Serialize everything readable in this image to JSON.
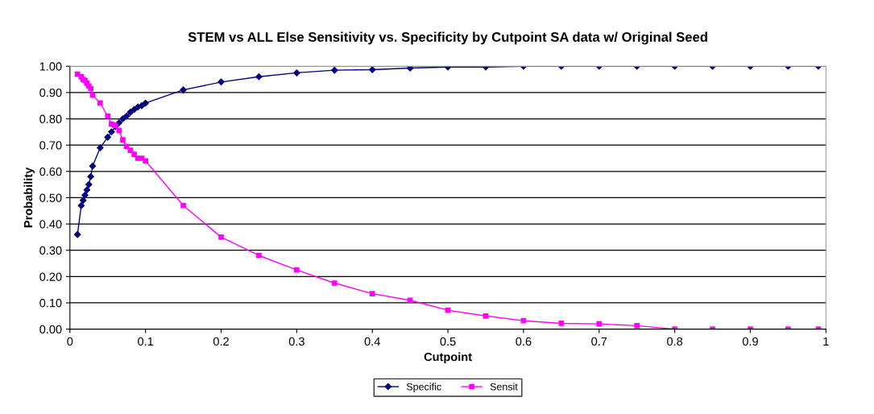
{
  "chart_data": {
    "type": "line",
    "title": "STEM vs ALL Else Sensitivity vs. Specificity by Cutpoint SA data w/ Original Seed",
    "xlabel": "Cutpoint",
    "ylabel": "Probability",
    "x": [
      0.01,
      0.015,
      0.0175,
      0.02,
      0.0225,
      0.025,
      0.0275,
      0.03,
      0.04,
      0.05,
      0.055,
      0.06,
      0.065,
      0.07,
      0.075,
      0.08,
      0.085,
      0.09,
      0.095,
      0.1,
      0.15,
      0.2,
      0.25,
      0.3,
      0.35,
      0.4,
      0.45,
      0.5,
      0.55,
      0.6,
      0.65,
      0.7,
      0.75,
      0.8,
      0.85,
      0.9,
      0.95,
      0.99
    ],
    "series": [
      {
        "name": "Specific",
        "color": "#000080",
        "marker": "diamond",
        "values": [
          0.36,
          0.47,
          0.49,
          0.51,
          0.53,
          0.55,
          0.58,
          0.62,
          0.69,
          0.73,
          0.75,
          0.77,
          0.785,
          0.8,
          0.81,
          0.825,
          0.835,
          0.845,
          0.85,
          0.86,
          0.91,
          0.94,
          0.96,
          0.975,
          0.985,
          0.987,
          0.993,
          0.997,
          0.997,
          1.0,
          1.0,
          1.0,
          1.0,
          1.0,
          1.0,
          1.0,
          1.0,
          1.0
        ]
      },
      {
        "name": "Sensit",
        "color": "#ff00ff",
        "marker": "square",
        "values": [
          0.97,
          0.96,
          0.95,
          0.945,
          0.935,
          0.925,
          0.915,
          0.89,
          0.86,
          0.81,
          0.78,
          0.775,
          0.755,
          0.72,
          0.695,
          0.68,
          0.665,
          0.65,
          0.65,
          0.64,
          0.47,
          0.35,
          0.28,
          0.225,
          0.175,
          0.135,
          0.11,
          0.072,
          0.05,
          0.032,
          0.022,
          0.02,
          0.013,
          0.0,
          0.0,
          0.0,
          0.0,
          0.0
        ]
      }
    ],
    "xlim": [
      0,
      1
    ],
    "xticks": [
      0,
      0.1,
      0.2,
      0.3,
      0.4,
      0.5,
      0.6,
      0.7,
      0.8,
      0.9,
      1
    ],
    "ylim": [
      0,
      1
    ],
    "yticks": [
      {
        "value": 0,
        "label": "0.00"
      },
      {
        "value": 0.1,
        "label": "0.10"
      },
      {
        "value": 0.2,
        "label": "0.20"
      },
      {
        "value": 0.3,
        "label": "0.30"
      },
      {
        "value": 0.4,
        "label": "0.40"
      },
      {
        "value": 0.5,
        "label": "0.50"
      },
      {
        "value": 0.6,
        "label": "0.60"
      },
      {
        "value": 0.7,
        "label": "0.70"
      },
      {
        "value": 0.8,
        "label": "0.80"
      },
      {
        "value": 0.9,
        "label": "0.90"
      },
      {
        "value": 1,
        "label": "1.00"
      }
    ],
    "grid": "y",
    "legend": "bottom",
    "line_style": "solid"
  }
}
